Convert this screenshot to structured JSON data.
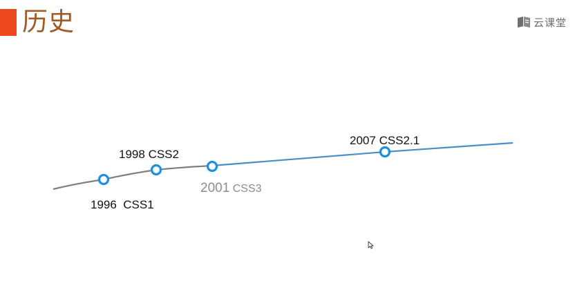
{
  "slide": {
    "title": "历史",
    "accent_color": "#ee4a1f",
    "title_color": "#a05a28"
  },
  "logo": {
    "text": "云课堂",
    "icon": "book-logo-icon"
  },
  "timeline": {
    "line_gray": "#7f7f7f",
    "line_blue": "#4a8ec8",
    "marker_color": "#1b8fe0",
    "events": [
      {
        "year": "1996",
        "name": "CSS1",
        "sep": "  "
      },
      {
        "year": "1998",
        "name": "CSS2",
        "sep": " "
      },
      {
        "year": "2001",
        "name": "CSS3",
        "sep": " "
      },
      {
        "year": "2007",
        "name": "CSS2.1",
        "sep": " "
      }
    ]
  }
}
